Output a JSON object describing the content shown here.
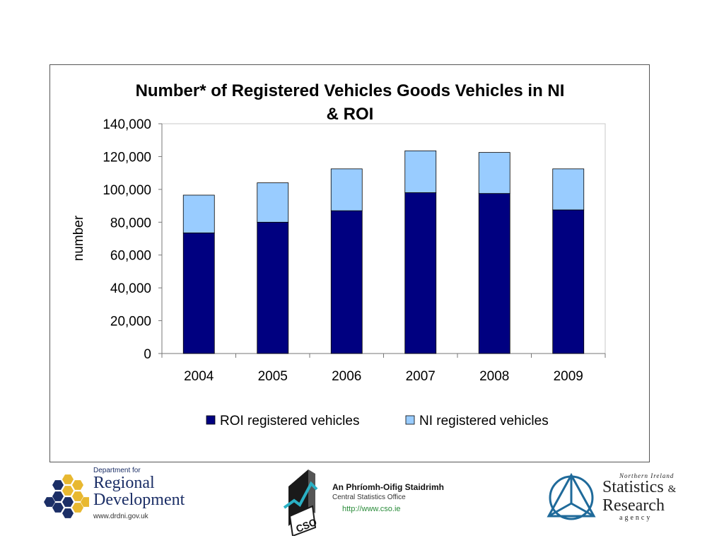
{
  "chart_data": {
    "type": "bar",
    "stacked": true,
    "title": "Number* of Registered Vehicles Goods Vehicles in NI & ROI",
    "title_lines": [
      "Number* of Registered Vehicles Goods Vehicles in NI",
      "& ROI"
    ],
    "ylabel": "number",
    "xlabel": "",
    "ylim": [
      0,
      140000
    ],
    "yticks": [
      0,
      20000,
      40000,
      60000,
      80000,
      100000,
      120000,
      140000
    ],
    "ytick_labels": [
      "0",
      "20,000",
      "40,000",
      "60,000",
      "80,000",
      "100,000",
      "120,000",
      "140,000"
    ],
    "categories": [
      "2004",
      "2005",
      "2006",
      "2007",
      "2008",
      "2009"
    ],
    "series": [
      {
        "name": "ROI registered vehicles",
        "color": "#000080",
        "values": [
          73500,
          80000,
          87000,
          98000,
          97500,
          87500
        ]
      },
      {
        "name": "NI registered vehicles",
        "color": "#99ccff",
        "values": [
          23000,
          24000,
          25500,
          25500,
          25000,
          25000
        ]
      }
    ],
    "grid": false,
    "legend_position": "bottom"
  },
  "footer": {
    "drd": {
      "dept_line": "Department for",
      "line1": "Regional",
      "line2": "Development",
      "url": "www.drdni.gov.uk"
    },
    "cso": {
      "irish_name": "An Phríomh-Oifig Staidrimh",
      "english_name": "Central Statistics Office",
      "url": "http://www.cso.ie",
      "mark_text": "CSO"
    },
    "nisra": {
      "ni_line": "Northern Ireland",
      "stat_word": "Statistics",
      "amp": "&",
      "research_word": "Research",
      "agency_word": "agency"
    }
  }
}
